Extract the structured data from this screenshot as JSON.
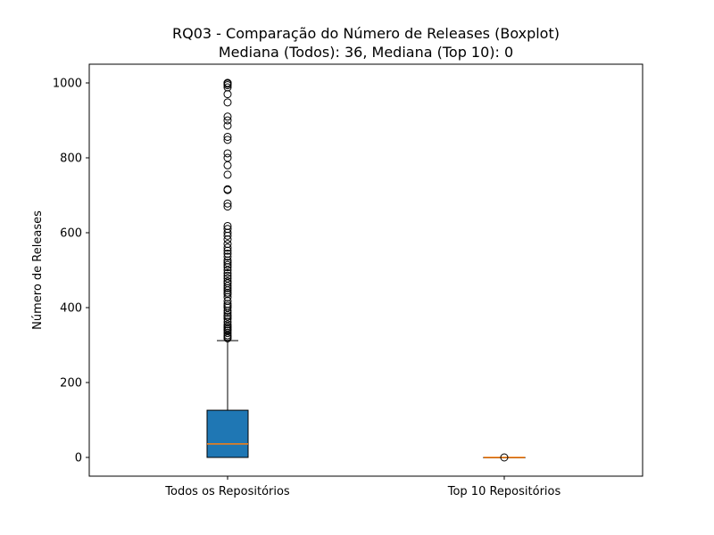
{
  "chart_data": {
    "type": "boxplot",
    "title": "RQ03 - Comparação do Número de Releases (Boxplot)",
    "subtitle": "Mediana (Todos): 36, Mediana (Top 10): 0",
    "xlabel": "",
    "ylabel": "Número de Releases",
    "ylim": [
      -50,
      1050
    ],
    "yticks": [
      0,
      200,
      400,
      600,
      800,
      1000
    ],
    "categories": [
      "Todos os Repositórios",
      "Top 10 Repositórios"
    ],
    "grid": false,
    "colors": {
      "box_fill": "#1f77b4",
      "median": "#ff7f0e",
      "whisker": "#000000",
      "outlier_edge": "#000000"
    },
    "series": [
      {
        "category": "Todos os Repositórios",
        "whisker_low": 0,
        "q1": 0,
        "median": 36,
        "q3": 126,
        "whisker_high": 312,
        "outliers": [
          318,
          322,
          326,
          332,
          338,
          342,
          346,
          350,
          355,
          362,
          370,
          376,
          380,
          386,
          392,
          400,
          405,
          410,
          418,
          428,
          436,
          440,
          446,
          452,
          458,
          465,
          470,
          478,
          485,
          492,
          500,
          508,
          514,
          520,
          526,
          536,
          544,
          552,
          560,
          570,
          582,
          592,
          600,
          610,
          618,
          670,
          678,
          714,
          716,
          755,
          780,
          800,
          812,
          848,
          856,
          886,
          900,
          910,
          948,
          970,
          988,
          994,
          998,
          1000,
          1000
        ]
      },
      {
        "category": "Top 10 Repositórios",
        "whisker_low": 0,
        "q1": 0,
        "median": 0,
        "q3": 0,
        "whisker_high": 0,
        "outliers": [
          0
        ]
      }
    ]
  }
}
